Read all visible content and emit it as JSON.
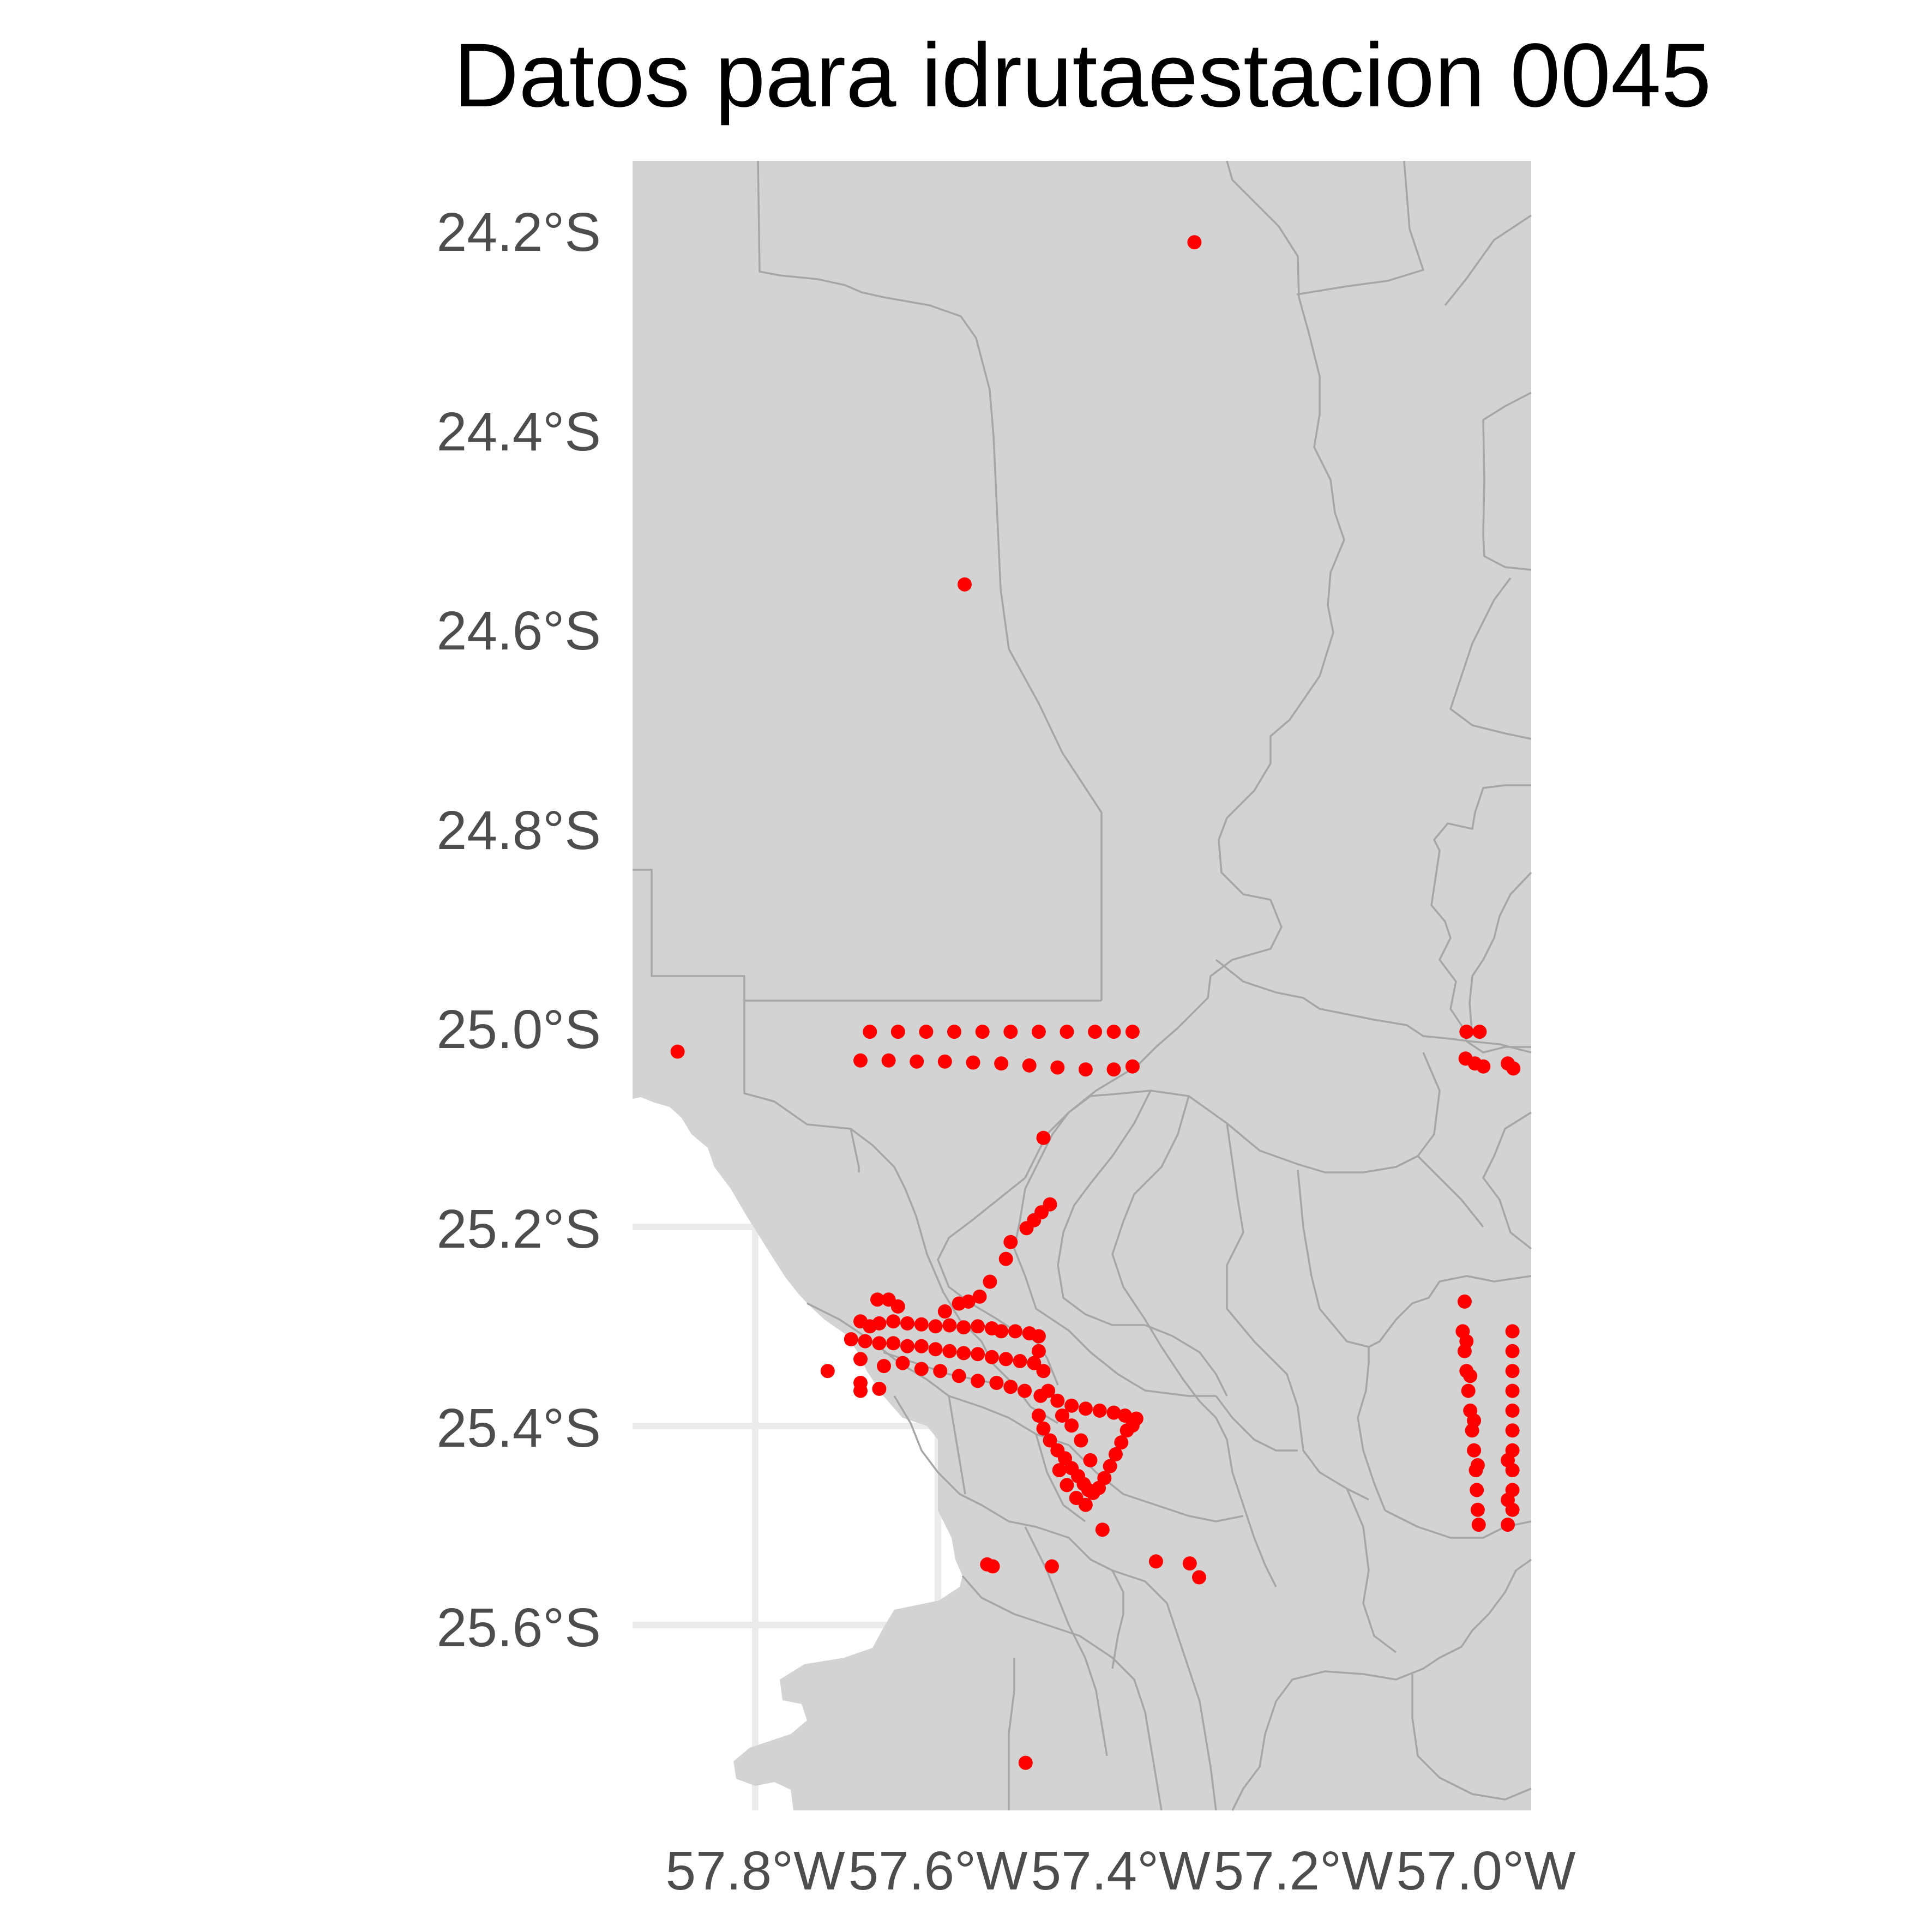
{
  "title": "Datos para idrutaestacion 0045",
  "colors": {
    "land": "#d3d3d3",
    "border": "#a6a6a6",
    "points": "#ff0000",
    "background": "#ffffff",
    "grid": "#ebebeb"
  },
  "chart_data": {
    "type": "scatter",
    "title": "Datos para idrutaestacion 0045",
    "xlabel": "",
    "ylabel": "",
    "x_unit": "longitude",
    "y_unit": "latitude",
    "xlim": [
      -57.933,
      -56.975
    ],
    "ylim": [
      -25.783,
      -24.12
    ],
    "x_ticks": [
      -57.8,
      -57.6,
      -57.4,
      -57.2,
      -57.0
    ],
    "x_tick_labels": [
      "57.8°W",
      "57.6°W",
      "57.4°W",
      "57.2°W",
      "57.0°W"
    ],
    "y_ticks": [
      -24.2,
      -24.4,
      -24.6,
      -24.8,
      -25.0,
      -25.2,
      -25.4,
      -25.6
    ],
    "y_tick_labels": [
      "24.2°S",
      "24.4°S",
      "24.6°S",
      "24.8°S",
      "25.0°S",
      "25.2°S",
      "25.4°S",
      "25.6°S"
    ],
    "grid": true,
    "series": [
      {
        "color": "#ff0000",
        "points": [
          {
            "x": -57.334,
            "y": -24.202
          },
          {
            "x": -57.579,
            "y": -24.547
          },
          {
            "x": -57.885,
            "y": -25.018
          },
          {
            "x": -57.68,
            "y": -24.998
          },
          {
            "x": -57.65,
            "y": -24.998
          },
          {
            "x": -57.62,
            "y": -24.998
          },
          {
            "x": -57.59,
            "y": -24.998
          },
          {
            "x": -57.56,
            "y": -24.998
          },
          {
            "x": -57.53,
            "y": -24.998
          },
          {
            "x": -57.5,
            "y": -24.998
          },
          {
            "x": -57.47,
            "y": -24.998
          },
          {
            "x": -57.44,
            "y": -24.998
          },
          {
            "x": -57.42,
            "y": -24.998
          },
          {
            "x": -57.4,
            "y": -24.998
          },
          {
            "x": -57.69,
            "y": -25.027
          },
          {
            "x": -57.66,
            "y": -25.027
          },
          {
            "x": -57.63,
            "y": -25.028
          },
          {
            "x": -57.6,
            "y": -25.028
          },
          {
            "x": -57.57,
            "y": -25.029
          },
          {
            "x": -57.54,
            "y": -25.03
          },
          {
            "x": -57.51,
            "y": -25.032
          },
          {
            "x": -57.48,
            "y": -25.034
          },
          {
            "x": -57.45,
            "y": -25.036
          },
          {
            "x": -57.42,
            "y": -25.036
          },
          {
            "x": -57.4,
            "y": -25.033
          },
          {
            "x": -57.044,
            "y": -24.998
          },
          {
            "x": -57.03,
            "y": -24.998
          },
          {
            "x": -57.045,
            "y": -25.025
          },
          {
            "x": -57.035,
            "y": -25.03
          },
          {
            "x": -57.026,
            "y": -25.033
          },
          {
            "x": -57.0,
            "y": -25.03
          },
          {
            "x": -56.994,
            "y": -25.035
          },
          {
            "x": -57.495,
            "y": -25.105
          },
          {
            "x": -57.488,
            "y": -25.172
          },
          {
            "x": -57.497,
            "y": -25.18
          },
          {
            "x": -57.505,
            "y": -25.188
          },
          {
            "x": -57.513,
            "y": -25.196
          },
          {
            "x": -57.53,
            "y": -25.21
          },
          {
            "x": -57.535,
            "y": -25.227
          },
          {
            "x": -57.552,
            "y": -25.25
          },
          {
            "x": -57.563,
            "y": -25.265
          },
          {
            "x": -57.575,
            "y": -25.27
          },
          {
            "x": -57.585,
            "y": -25.272
          },
          {
            "x": -57.6,
            "y": -25.28
          },
          {
            "x": -57.672,
            "y": -25.268
          },
          {
            "x": -57.66,
            "y": -25.268
          },
          {
            "x": -57.65,
            "y": -25.275
          },
          {
            "x": -57.69,
            "y": -25.29
          },
          {
            "x": -57.68,
            "y": -25.295
          },
          {
            "x": -57.67,
            "y": -25.292
          },
          {
            "x": -57.655,
            "y": -25.29
          },
          {
            "x": -57.64,
            "y": -25.292
          },
          {
            "x": -57.625,
            "y": -25.293
          },
          {
            "x": -57.61,
            "y": -25.295
          },
          {
            "x": -57.595,
            "y": -25.294
          },
          {
            "x": -57.58,
            "y": -25.296
          },
          {
            "x": -57.565,
            "y": -25.295
          },
          {
            "x": -57.55,
            "y": -25.297
          },
          {
            "x": -57.54,
            "y": -25.3
          },
          {
            "x": -57.525,
            "y": -25.3
          },
          {
            "x": -57.51,
            "y": -25.302
          },
          {
            "x": -57.5,
            "y": -25.305
          },
          {
            "x": -57.7,
            "y": -25.308
          },
          {
            "x": -57.685,
            "y": -25.31
          },
          {
            "x": -57.67,
            "y": -25.312
          },
          {
            "x": -57.655,
            "y": -25.312
          },
          {
            "x": -57.64,
            "y": -25.315
          },
          {
            "x": -57.625,
            "y": -25.315
          },
          {
            "x": -57.61,
            "y": -25.318
          },
          {
            "x": -57.595,
            "y": -25.32
          },
          {
            "x": -57.58,
            "y": -25.322
          },
          {
            "x": -57.565,
            "y": -25.323
          },
          {
            "x": -57.55,
            "y": -25.326
          },
          {
            "x": -57.535,
            "y": -25.328
          },
          {
            "x": -57.52,
            "y": -25.33
          },
          {
            "x": -57.505,
            "y": -25.332
          },
          {
            "x": -57.69,
            "y": -25.328
          },
          {
            "x": -57.665,
            "y": -25.335
          },
          {
            "x": -57.645,
            "y": -25.332
          },
          {
            "x": -57.625,
            "y": -25.338
          },
          {
            "x": -57.605,
            "y": -25.34
          },
          {
            "x": -57.585,
            "y": -25.345
          },
          {
            "x": -57.565,
            "y": -25.35
          },
          {
            "x": -57.545,
            "y": -25.352
          },
          {
            "x": -57.53,
            "y": -25.356
          },
          {
            "x": -57.515,
            "y": -25.36
          },
          {
            "x": -57.498,
            "y": -25.365
          },
          {
            "x": -57.48,
            "y": -25.37
          },
          {
            "x": -57.465,
            "y": -25.375
          },
          {
            "x": -57.45,
            "y": -25.378
          },
          {
            "x": -57.435,
            "y": -25.38
          },
          {
            "x": -57.42,
            "y": -25.382
          },
          {
            "x": -57.408,
            "y": -25.385
          },
          {
            "x": -57.396,
            "y": -25.388
          },
          {
            "x": -57.725,
            "y": -25.34
          },
          {
            "x": -57.69,
            "y": -25.352
          },
          {
            "x": -57.67,
            "y": -25.358
          },
          {
            "x": -57.69,
            "y": -25.36
          },
          {
            "x": -57.5,
            "y": -25.32
          },
          {
            "x": -57.495,
            "y": -25.34
          },
          {
            "x": -57.49,
            "y": -25.36
          },
          {
            "x": -57.5,
            "y": -25.385
          },
          {
            "x": -57.495,
            "y": -25.398
          },
          {
            "x": -57.488,
            "y": -25.41
          },
          {
            "x": -57.48,
            "y": -25.42
          },
          {
            "x": -57.472,
            "y": -25.428
          },
          {
            "x": -57.465,
            "y": -25.438
          },
          {
            "x": -57.458,
            "y": -25.446
          },
          {
            "x": -57.452,
            "y": -25.454
          },
          {
            "x": -57.447,
            "y": -25.46
          },
          {
            "x": -57.442,
            "y": -25.463
          },
          {
            "x": -57.436,
            "y": -25.458
          },
          {
            "x": -57.43,
            "y": -25.448
          },
          {
            "x": -57.424,
            "y": -25.436
          },
          {
            "x": -57.418,
            "y": -25.424
          },
          {
            "x": -57.412,
            "y": -25.412
          },
          {
            "x": -57.406,
            "y": -25.4
          },
          {
            "x": -57.4,
            "y": -25.395
          },
          {
            "x": -57.445,
            "y": -25.43
          },
          {
            "x": -57.455,
            "y": -25.41
          },
          {
            "x": -57.465,
            "y": -25.395
          },
          {
            "x": -57.475,
            "y": -25.385
          },
          {
            "x": -57.478,
            "y": -25.44
          },
          {
            "x": -57.47,
            "y": -25.455
          },
          {
            "x": -57.46,
            "y": -25.468
          },
          {
            "x": -57.45,
            "y": -25.475
          },
          {
            "x": -57.432,
            "y": -25.5
          },
          {
            "x": -57.555,
            "y": -25.535
          },
          {
            "x": -57.549,
            "y": -25.537
          },
          {
            "x": -57.486,
            "y": -25.537
          },
          {
            "x": -57.375,
            "y": -25.532
          },
          {
            "x": -57.339,
            "y": -25.534
          },
          {
            "x": -57.329,
            "y": -25.548
          },
          {
            "x": -57.514,
            "y": -25.735
          },
          {
            "x": -57.046,
            "y": -25.27
          },
          {
            "x": -57.048,
            "y": -25.3
          },
          {
            "x": -57.046,
            "y": -25.32
          },
          {
            "x": -57.044,
            "y": -25.34
          },
          {
            "x": -57.042,
            "y": -25.36
          },
          {
            "x": -57.04,
            "y": -25.38
          },
          {
            "x": -57.038,
            "y": -25.4
          },
          {
            "x": -57.036,
            "y": -25.42
          },
          {
            "x": -57.034,
            "y": -25.44
          },
          {
            "x": -57.033,
            "y": -25.46
          },
          {
            "x": -57.032,
            "y": -25.48
          },
          {
            "x": -57.031,
            "y": -25.495
          },
          {
            "x": -57.044,
            "y": -25.31
          },
          {
            "x": -57.04,
            "y": -25.345
          },
          {
            "x": -57.036,
            "y": -25.39
          },
          {
            "x": -57.032,
            "y": -25.435
          },
          {
            "x": -56.995,
            "y": -25.3
          },
          {
            "x": -56.995,
            "y": -25.32
          },
          {
            "x": -56.995,
            "y": -25.34
          },
          {
            "x": -56.995,
            "y": -25.36
          },
          {
            "x": -56.995,
            "y": -25.38
          },
          {
            "x": -56.995,
            "y": -25.4
          },
          {
            "x": -56.995,
            "y": -25.42
          },
          {
            "x": -56.995,
            "y": -25.44
          },
          {
            "x": -56.995,
            "y": -25.46
          },
          {
            "x": -56.995,
            "y": -25.48
          },
          {
            "x": -57.0,
            "y": -25.43
          },
          {
            "x": -57.0,
            "y": -25.47
          },
          {
            "x": -57.0,
            "y": -25.495
          }
        ]
      }
    ]
  }
}
